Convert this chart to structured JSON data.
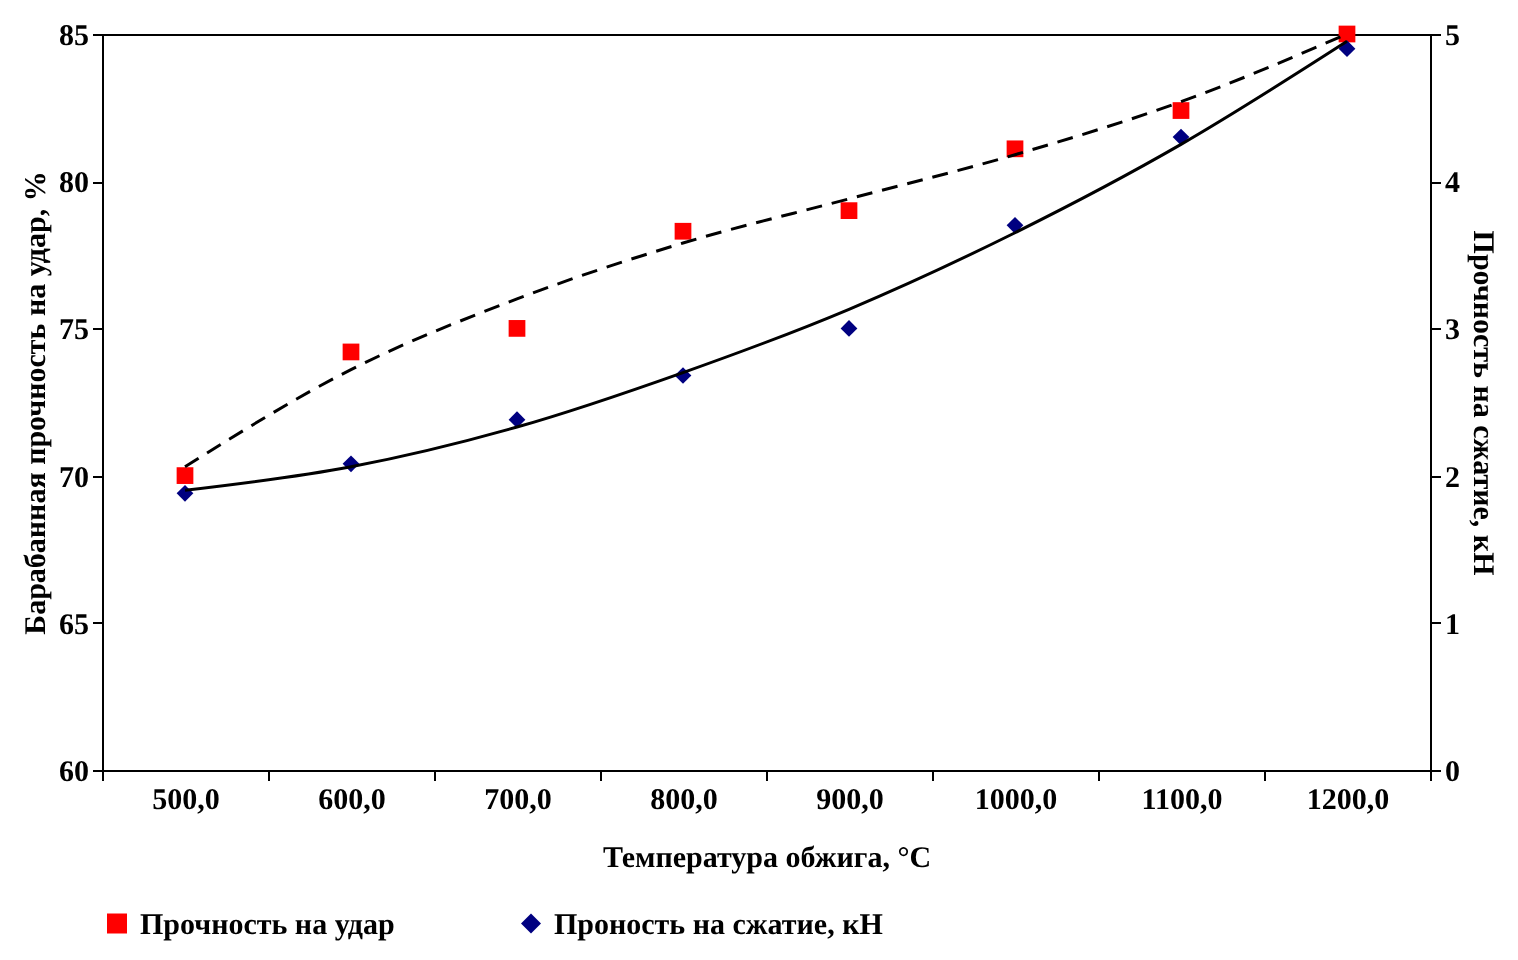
{
  "chart_data": {
    "type": "scatter",
    "xlabel": "Температура обжига, °C",
    "ylabel": "Барабанная прочность на удар, %",
    "y2label": "Прочность на сжатие, кН",
    "categories": [
      "500,0",
      "600,0",
      "700,0",
      "800,0",
      "900,0",
      "1000,0",
      "1100,0",
      "1200,0"
    ],
    "ylim": [
      60,
      85
    ],
    "yticks": [
      60,
      65,
      70,
      75,
      80,
      85
    ],
    "y2lim": [
      0,
      5
    ],
    "y2ticks": [
      0,
      1,
      2,
      3,
      4,
      5
    ],
    "legend": "bottom",
    "series": [
      {
        "name": "Прочность на удар",
        "marker": "square",
        "color": "#ff0000",
        "values": [
          70.0,
          74.2,
          75.0,
          78.3,
          79.0,
          81.1,
          82.4,
          85.0
        ]
      },
      {
        "type": "line",
        "line_style": "dashed",
        "color": "#000000",
        "values": [
          70.3,
          73.6,
          76.0,
          77.9,
          79.4,
          80.9,
          82.7,
          85.0
        ]
      },
      {
        "name": "Проность на сжатие, кН",
        "marker": "diamond",
        "color": "#000080",
        "axis": "y2",
        "values": [
          1.88,
          2.08,
          2.38,
          2.68,
          3.0,
          3.7,
          4.3,
          4.9
        ]
      },
      {
        "type": "line",
        "line_style": "solid",
        "color": "#000000",
        "axis": "y2",
        "values": [
          1.9,
          2.06,
          2.33,
          2.7,
          3.13,
          3.65,
          4.25,
          4.95
        ]
      }
    ]
  }
}
